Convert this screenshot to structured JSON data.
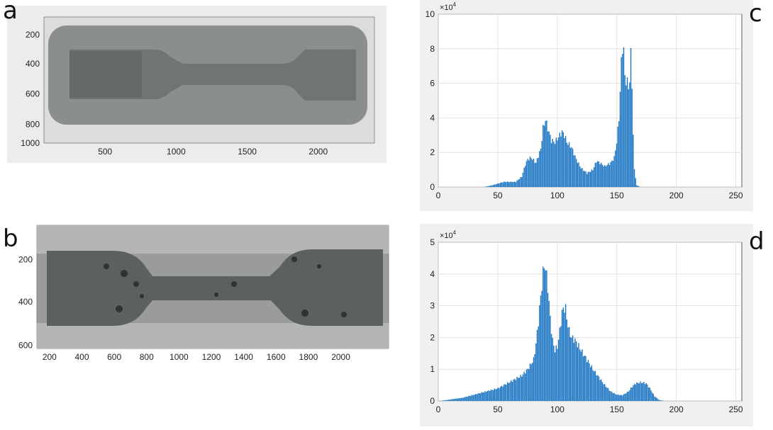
{
  "panels": {
    "a": {
      "letter": "a",
      "y_ticks": [
        "200",
        "400",
        "600",
        "800",
        "1000"
      ],
      "x_ticks": [
        "500",
        "1000",
        "1500",
        "2000"
      ],
      "image": "tensile-specimen-photo"
    },
    "b": {
      "letter": "b",
      "y_ticks": [
        "200",
        "400",
        "600"
      ],
      "x_ticks": [
        "200",
        "400",
        "600",
        "800",
        "1000",
        "1200",
        "1400",
        "1600",
        "1800",
        "2000"
      ],
      "image": "fractured-porous-specimen-photo"
    },
    "c": {
      "letter": "c"
    },
    "d": {
      "letter": "d"
    }
  },
  "colors": {
    "bar": "#1f77c4",
    "axes_bg": "#f0f0f0",
    "grid": "#dcdcdc"
  },
  "chart_data": [
    {
      "panel": "c",
      "type": "bar",
      "xlim": [
        0,
        255
      ],
      "ylim": [
        0,
        10
      ],
      "y_exponent_label": "×10",
      "y_exponent_power": "4",
      "x_ticks": [
        0,
        50,
        100,
        150,
        200,
        250
      ],
      "y_ticks": [
        0,
        2,
        4,
        6,
        8,
        10
      ],
      "grid": true,
      "peaks_x": [
        30,
        38,
        45,
        50,
        55,
        60,
        65,
        70,
        73,
        75,
        78,
        82,
        86,
        88,
        90,
        92,
        95,
        98,
        100,
        104,
        106,
        108,
        112,
        116,
        120,
        125,
        130,
        133,
        136,
        140,
        145,
        148,
        150,
        152,
        153,
        154,
        155,
        156,
        157,
        158,
        159,
        160,
        161,
        162,
        163,
        164,
        165,
        167,
        170,
        255
      ],
      "peaks_y": [
        0,
        0,
        0.1,
        0.2,
        0.3,
        0.3,
        0.3,
        0.6,
        1.3,
        1.6,
        1.7,
        1.4,
        2.2,
        3.4,
        3.9,
        3.4,
        2.7,
        2.6,
        2.8,
        3.2,
        3.0,
        2.6,
        2.3,
        1.6,
        1.1,
        0.8,
        1.0,
        1.5,
        1.4,
        1.2,
        1.4,
        1.7,
        2.6,
        4.0,
        5.5,
        7.2,
        8.2,
        7.8,
        6.4,
        6.2,
        6.0,
        5.8,
        6.2,
        7.6,
        6.0,
        3.0,
        1.0,
        0.1,
        0,
        0
      ]
    },
    {
      "panel": "d",
      "type": "bar",
      "xlim": [
        0,
        255
      ],
      "ylim": [
        0,
        5
      ],
      "y_exponent_label": "×10",
      "y_exponent_power": "4",
      "x_ticks": [
        0,
        50,
        100,
        150,
        200,
        250
      ],
      "y_ticks": [
        0,
        1,
        2,
        3,
        4,
        5
      ],
      "grid": true,
      "peaks_x": [
        0,
        5,
        10,
        20,
        30,
        40,
        50,
        60,
        65,
        70,
        75,
        80,
        82,
        84,
        86,
        88,
        89,
        90,
        92,
        94,
        96,
        98,
        100,
        102,
        104,
        106,
        107,
        108,
        110,
        112,
        114,
        116,
        120,
        125,
        130,
        135,
        140,
        145,
        150,
        155,
        160,
        163,
        166,
        169,
        172,
        175,
        178,
        182,
        186,
        190,
        255
      ],
      "peaks_y": [
        0,
        0.02,
        0.05,
        0.1,
        0.2,
        0.3,
        0.4,
        0.6,
        0.7,
        0.8,
        1.0,
        1.3,
        1.8,
        2.5,
        3.3,
        4.0,
        4.3,
        4.2,
        3.6,
        2.6,
        1.9,
        1.6,
        1.7,
        2.2,
        2.8,
        2.95,
        2.9,
        2.6,
        2.2,
        2.0,
        1.95,
        1.85,
        1.6,
        1.3,
        1.0,
        0.75,
        0.5,
        0.3,
        0.2,
        0.18,
        0.3,
        0.45,
        0.55,
        0.58,
        0.58,
        0.55,
        0.4,
        0.15,
        0.03,
        0,
        0
      ]
    }
  ]
}
